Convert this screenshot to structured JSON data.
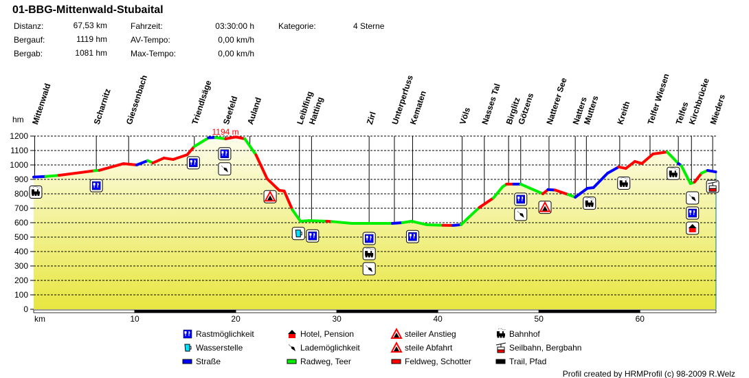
{
  "header": {
    "title": "01-BBG-Mittenwald-Stubaital",
    "stats": [
      {
        "label": "Distanz:",
        "value": "67,53 km"
      },
      {
        "label": "Bergauf:",
        "value": "1119 hm"
      },
      {
        "label": "Bergab:",
        "value": "1081 hm"
      },
      {
        "label": "Fahrzeit:",
        "value": "03:30:00 h"
      },
      {
        "label": "AV-Tempo:",
        "value": "0,00 km/h"
      },
      {
        "label": "Max-Tempo:",
        "value": "0,00 km/h"
      },
      {
        "label": "Kategorie:",
        "value": "4 Sterne"
      }
    ]
  },
  "colors": {
    "road": "#0000ff",
    "paved": "#00ee00",
    "gravel": "#ff0000",
    "trail": "#000000",
    "peak_label": "#ff0000",
    "fill_top": "#fdfdec",
    "fill_bottom": "#e8e640"
  },
  "chart_data": {
    "type": "area",
    "xlabel": "km",
    "ylabel": "hm",
    "xlim": [
      0,
      67.53
    ],
    "ylim": [
      0,
      1200
    ],
    "xticks": [
      10,
      20,
      30,
      40,
      50,
      60
    ],
    "yticks": [
      0,
      100,
      200,
      300,
      400,
      500,
      600,
      700,
      800,
      900,
      1000,
      1100,
      1200
    ],
    "grid": true,
    "peak_label": "1194 m",
    "peak": {
      "km": 20.0,
      "elev": 1194
    },
    "profile": [
      [
        0,
        916,
        "road"
      ],
      [
        1.2,
        920,
        "road"
      ],
      [
        2.5,
        928,
        "paved"
      ],
      [
        6.0,
        960,
        "gravel"
      ],
      [
        6.5,
        963,
        "paved"
      ],
      [
        8.9,
        1009,
        "gravel"
      ],
      [
        10.2,
        1000,
        "gravel"
      ],
      [
        11.3,
        1030,
        "road"
      ],
      [
        11.8,
        1014,
        "paved"
      ],
      [
        12.9,
        1048,
        "gravel"
      ],
      [
        13.8,
        1038,
        "gravel"
      ],
      [
        15.2,
        1071,
        "gravel"
      ],
      [
        15.9,
        1128,
        "gravel"
      ],
      [
        17.3,
        1188,
        "paved"
      ],
      [
        18.0,
        1190,
        "road"
      ],
      [
        19.0,
        1181,
        "paved"
      ],
      [
        20.0,
        1194,
        "gravel"
      ],
      [
        20.9,
        1181,
        "gravel"
      ],
      [
        22.0,
        1070,
        "paved"
      ],
      [
        23.1,
        905,
        "gravel"
      ],
      [
        24.3,
        824,
        "gravel"
      ],
      [
        24.8,
        819,
        "gravel"
      ],
      [
        25.6,
        690,
        "gravel"
      ],
      [
        26.4,
        610,
        "paved"
      ],
      [
        27.2,
        614,
        "paved"
      ],
      [
        29.0,
        610,
        "paved"
      ],
      [
        29.5,
        608,
        "gravel"
      ],
      [
        31.5,
        595,
        "paved"
      ],
      [
        33.3,
        595,
        "paved"
      ],
      [
        35.5,
        595,
        "paved"
      ],
      [
        36.5,
        600,
        "road"
      ],
      [
        37.4,
        610,
        "paved"
      ],
      [
        38.9,
        586,
        "paved"
      ],
      [
        40.5,
        582,
        "paved"
      ],
      [
        41.5,
        581,
        "gravel"
      ],
      [
        42.3,
        586,
        "road"
      ],
      [
        43.0,
        633,
        "paved"
      ],
      [
        44.1,
        705,
        "paved"
      ],
      [
        45.5,
        771,
        "gravel"
      ],
      [
        46.4,
        848,
        "paved"
      ],
      [
        46.8,
        867,
        "paved"
      ],
      [
        47.5,
        867,
        "gravel"
      ],
      [
        48.2,
        867,
        "road"
      ],
      [
        50.4,
        800,
        "paved"
      ],
      [
        50.9,
        829,
        "gravel"
      ],
      [
        51.6,
        826,
        "road"
      ],
      [
        52.9,
        795,
        "gravel"
      ],
      [
        53.6,
        776,
        "paved"
      ],
      [
        54.8,
        838,
        "road"
      ],
      [
        55.4,
        843,
        "road"
      ],
      [
        56.8,
        943,
        "road"
      ],
      [
        57.9,
        986,
        "road"
      ],
      [
        58.6,
        976,
        "gravel"
      ],
      [
        59.5,
        1024,
        "gravel"
      ],
      [
        60.2,
        1010,
        "gravel"
      ],
      [
        61.3,
        1076,
        "gravel"
      ],
      [
        62.7,
        1090,
        "gravel"
      ],
      [
        63.8,
        1010,
        "paved"
      ],
      [
        64.1,
        995,
        "road"
      ],
      [
        65.0,
        871,
        "paved"
      ],
      [
        65.4,
        881,
        "paved"
      ],
      [
        66.1,
        943,
        "gravel"
      ],
      [
        66.7,
        962,
        "paved"
      ],
      [
        67.5,
        952,
        "road"
      ]
    ],
    "waypoints": [
      {
        "name": "Mittenwald",
        "km": 0.1
      },
      {
        "name": "Scharnitz",
        "km": 6.2
      },
      {
        "name": "Giessenbach",
        "km": 9.4
      },
      {
        "name": "Triendlsäge",
        "km": 15.9
      },
      {
        "name": "Seefeld",
        "km": 19.0
      },
      {
        "name": "Auland",
        "km": 21.4
      },
      {
        "name": "Leiblfing",
        "km": 26.3
      },
      {
        "name": "Hatting",
        "km": 27.5
      },
      {
        "name": "Zirl",
        "km": 33.2
      },
      {
        "name": "Unterperfuss",
        "km": 35.7
      },
      {
        "name": "Kematen",
        "km": 37.5
      },
      {
        "name": "Völs",
        "km": 42.4
      },
      {
        "name": "Nasses Tal",
        "km": 44.6
      },
      {
        "name": "Birglitz",
        "km": 47.0
      },
      {
        "name": "Götzens",
        "km": 48.2
      },
      {
        "name": "Natterer See",
        "km": 51.0
      },
      {
        "name": "Natters",
        "km": 53.6
      },
      {
        "name": "Mutters",
        "km": 54.7
      },
      {
        "name": "Kreith",
        "km": 58.0
      },
      {
        "name": "Telfer Wiesen",
        "km": 61.0
      },
      {
        "name": "Telfes",
        "km": 63.8
      },
      {
        "name": "Kirchbrücke",
        "km": 65.1
      },
      {
        "name": "Mieders",
        "km": 67.2
      }
    ],
    "pois": [
      {
        "km": 0.2,
        "types": [
          "station"
        ]
      },
      {
        "km": 6.2,
        "types": [
          "rest"
        ]
      },
      {
        "km": 15.8,
        "types": [
          "rest"
        ]
      },
      {
        "km": 18.9,
        "types": [
          "rest",
          "charging"
        ]
      },
      {
        "km": 23.4,
        "types": [
          "steep-descent"
        ]
      },
      {
        "km": 26.2,
        "types": [
          "water"
        ]
      },
      {
        "km": 27.6,
        "types": [
          "rest"
        ]
      },
      {
        "km": 33.2,
        "types": [
          "rest",
          "station",
          "charging"
        ]
      },
      {
        "km": 37.5,
        "types": [
          "rest"
        ]
      },
      {
        "km": 48.2,
        "types": [
          "rest",
          "charging"
        ]
      },
      {
        "km": 50.6,
        "types": [
          "steep-climb"
        ]
      },
      {
        "km": 55.0,
        "types": [
          "station"
        ]
      },
      {
        "km": 58.4,
        "types": [
          "station"
        ]
      },
      {
        "km": 63.3,
        "types": [
          "station"
        ]
      },
      {
        "km": 65.2,
        "types": [
          "charging",
          "rest",
          "hotel"
        ]
      },
      {
        "km": 67.2,
        "types": [
          "cablecar"
        ]
      }
    ]
  },
  "legend": [
    {
      "icon": "rest",
      "label": "Rastmöglichkeit"
    },
    {
      "icon": "water",
      "label": "Wasserstelle"
    },
    {
      "icon": "road",
      "label": "Straße"
    },
    {
      "icon": "hotel",
      "label": "Hotel, Pension"
    },
    {
      "icon": "charging",
      "label": "Lademöglichkeit"
    },
    {
      "icon": "paved",
      "label": "Radweg, Teer"
    },
    {
      "icon": "steep-climb",
      "label": "steiler Anstieg"
    },
    {
      "icon": "steep-descent",
      "label": "steile Abfahrt"
    },
    {
      "icon": "gravel",
      "label": "Feldweg, Schotter"
    },
    {
      "icon": "station",
      "label": "Bahnhof"
    },
    {
      "icon": "cablecar",
      "label": "Seilbahn, Bergbahn"
    },
    {
      "icon": "trail",
      "label": "Trail, Pfad"
    }
  ],
  "credit": "Profil created by HRMProfil (c) 98-2009 R.Welz"
}
